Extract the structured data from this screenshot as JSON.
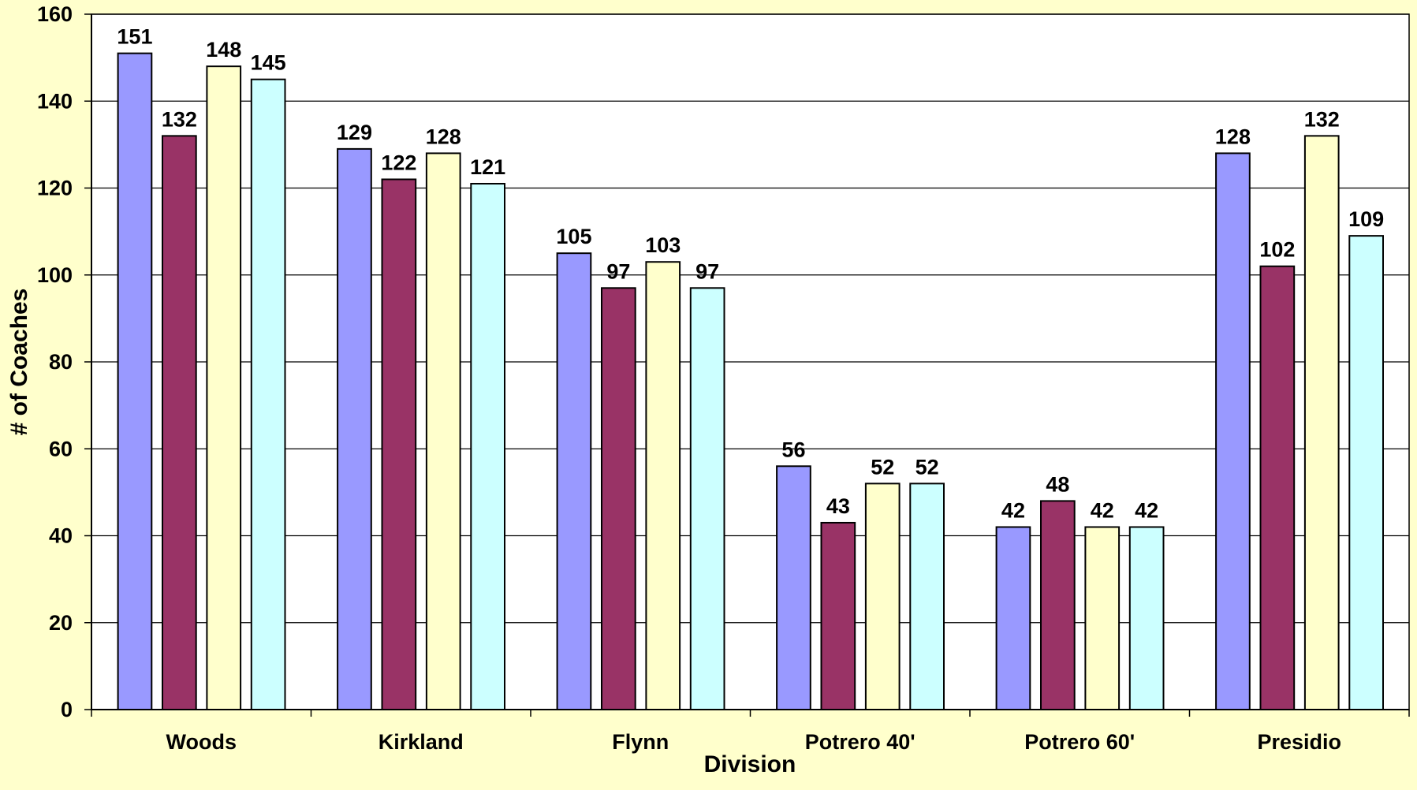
{
  "chart_data": {
    "type": "bar",
    "title": "",
    "xlabel": "Division",
    "ylabel": "# of Coaches",
    "ylim": [
      0,
      160
    ],
    "yticks": [
      "0",
      "20",
      "40",
      "60",
      "80",
      "100",
      "120",
      "140",
      "160"
    ],
    "grid": true,
    "legend": "none",
    "categories": [
      "Woods",
      "Kirkland",
      "Flynn",
      "Potrero 40'",
      "Potrero 60'",
      "Presidio"
    ],
    "series": [
      {
        "color": "#9999ff",
        "values": [
          151,
          129,
          105,
          56,
          42,
          128
        ]
      },
      {
        "color": "#993366",
        "values": [
          132,
          122,
          97,
          43,
          48,
          102
        ]
      },
      {
        "color": "#ffffcc",
        "values": [
          148,
          128,
          103,
          52,
          42,
          132
        ]
      },
      {
        "color": "#ccffff",
        "values": [
          145,
          121,
          97,
          52,
          42,
          109
        ]
      }
    ]
  },
  "colors": {
    "page_background": "#ffffcc",
    "plot_background": "#ffffff",
    "gridline": "#000000",
    "bar_outline": "#000000"
  }
}
